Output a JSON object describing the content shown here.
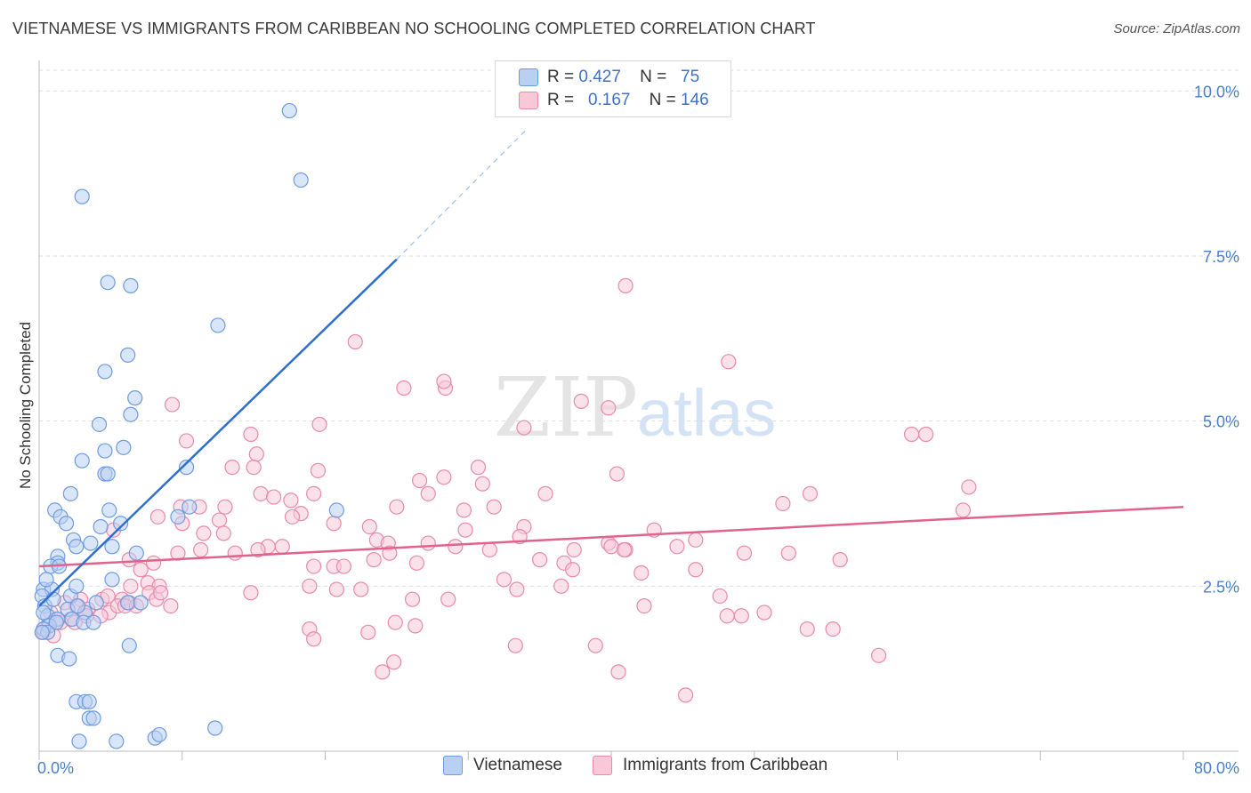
{
  "header": {
    "title": "VIETNAMESE VS IMMIGRANTS FROM CARIBBEAN NO SCHOOLING COMPLETED CORRELATION CHART",
    "source": "Source: ZipAtlas.com"
  },
  "legend": {
    "rows": [
      {
        "r_label": "R =",
        "r_value": "0.427",
        "n_label": "N =",
        "n_value": "75"
      },
      {
        "r_label": "R =",
        "r_value": "0.167",
        "n_label": "N =",
        "n_value": "146"
      }
    ]
  },
  "watermark": {
    "zip": "ZIP",
    "atlas": "atlas"
  },
  "colors": {
    "vietnamese_fill": "#b9d0f3",
    "vietnamese_stroke": "#6d9be0",
    "vietnamese_line": "#2d6fcf",
    "caribbean_fill": "#f8c8d8",
    "caribbean_stroke": "#e88aa8",
    "caribbean_line": "#e0628e",
    "tick_text": "#4a7fcb"
  },
  "chart_data": {
    "type": "scatter",
    "title": "VIETNAMESE VS IMMIGRANTS FROM CARIBBEAN NO SCHOOLING COMPLETED CORRELATION CHART",
    "xlabel": "",
    "ylabel": "No Schooling Completed",
    "xlim": [
      0,
      80
    ],
    "ylim": [
      0,
      10.3
    ],
    "x_tick_labels": [
      "0.0%",
      "80.0%"
    ],
    "y_ticks": [
      2.5,
      5.0,
      7.5,
      10.0
    ],
    "y_tick_labels": [
      "2.5%",
      "5.0%",
      "7.5%",
      "10.0%"
    ],
    "grid": true,
    "legend_position": "top-center",
    "series": [
      {
        "name": "Vietnamese",
        "r": 0.427,
        "n": 75,
        "trend": {
          "x0": 0.0,
          "y0": 2.2,
          "x1": 25.0,
          "y1": 7.45,
          "dash_to_x": 34.0,
          "dash_to_y": 9.4
        },
        "points": [
          [
            17.5,
            9.7
          ],
          [
            18.3,
            8.65
          ],
          [
            3.0,
            8.4
          ],
          [
            4.8,
            7.1
          ],
          [
            6.4,
            7.05
          ],
          [
            12.5,
            6.45
          ],
          [
            6.2,
            6.0
          ],
          [
            4.6,
            5.75
          ],
          [
            6.7,
            5.35
          ],
          [
            6.4,
            5.1
          ],
          [
            4.2,
            4.95
          ],
          [
            5.9,
            4.6
          ],
          [
            3.0,
            4.4
          ],
          [
            4.6,
            4.55
          ],
          [
            4.6,
            4.2
          ],
          [
            4.8,
            4.2
          ],
          [
            10.3,
            4.3
          ],
          [
            2.2,
            3.9
          ],
          [
            1.1,
            3.65
          ],
          [
            4.9,
            3.65
          ],
          [
            10.5,
            3.7
          ],
          [
            9.7,
            3.55
          ],
          [
            20.8,
            3.65
          ],
          [
            1.5,
            3.55
          ],
          [
            1.9,
            3.45
          ],
          [
            4.3,
            3.4
          ],
          [
            5.7,
            3.45
          ],
          [
            2.4,
            3.2
          ],
          [
            2.6,
            3.1
          ],
          [
            3.6,
            3.15
          ],
          [
            5.1,
            3.1
          ],
          [
            1.3,
            2.95
          ],
          [
            6.8,
            3.0
          ],
          [
            1.3,
            2.85
          ],
          [
            0.8,
            2.8
          ],
          [
            1.4,
            2.8
          ],
          [
            5.1,
            2.6
          ],
          [
            0.3,
            2.45
          ],
          [
            0.9,
            2.45
          ],
          [
            2.2,
            2.35
          ],
          [
            2.6,
            2.5
          ],
          [
            0.2,
            2.35
          ],
          [
            0.4,
            2.2
          ],
          [
            0.6,
            2.05
          ],
          [
            0.3,
            2.1
          ],
          [
            1.3,
            2.0
          ],
          [
            2.0,
            2.15
          ],
          [
            3.2,
            2.1
          ],
          [
            4.0,
            2.25
          ],
          [
            6.2,
            2.25
          ],
          [
            7.1,
            2.25
          ],
          [
            0.7,
            1.9
          ],
          [
            0.3,
            1.85
          ],
          [
            1.2,
            1.95
          ],
          [
            2.3,
            2.0
          ],
          [
            3.1,
            1.95
          ],
          [
            3.8,
            1.95
          ],
          [
            0.6,
            1.8
          ],
          [
            1.3,
            1.45
          ],
          [
            2.1,
            1.4
          ],
          [
            6.3,
            1.6
          ],
          [
            2.6,
            0.75
          ],
          [
            3.2,
            0.75
          ],
          [
            3.5,
            0.75
          ],
          [
            3.5,
            0.5
          ],
          [
            3.8,
            0.5
          ],
          [
            2.8,
            0.15
          ],
          [
            5.4,
            0.15
          ],
          [
            8.1,
            0.2
          ],
          [
            8.4,
            0.25
          ],
          [
            12.3,
            0.35
          ],
          [
            0.2,
            1.8
          ],
          [
            1.0,
            2.3
          ],
          [
            2.7,
            2.2
          ],
          [
            0.5,
            2.6
          ]
        ]
      },
      {
        "name": "Immigrants from Caribbean",
        "r": 0.167,
        "n": 146,
        "trend": {
          "x0": 0.0,
          "y0": 2.8,
          "x1": 80.0,
          "y1": 3.7
        },
        "points": [
          [
            41.0,
            7.05
          ],
          [
            22.1,
            6.2
          ],
          [
            48.2,
            5.9
          ],
          [
            28.4,
            5.5
          ],
          [
            28.3,
            5.6
          ],
          [
            25.5,
            5.5
          ],
          [
            37.9,
            5.3
          ],
          [
            39.8,
            5.2
          ],
          [
            9.3,
            5.25
          ],
          [
            19.6,
            4.95
          ],
          [
            33.9,
            4.9
          ],
          [
            62.0,
            4.8
          ],
          [
            10.3,
            4.7
          ],
          [
            15.2,
            4.5
          ],
          [
            13.5,
            4.3
          ],
          [
            15.0,
            4.3
          ],
          [
            19.5,
            4.25
          ],
          [
            30.7,
            4.3
          ],
          [
            28.3,
            4.15
          ],
          [
            26.6,
            4.1
          ],
          [
            31.0,
            4.05
          ],
          [
            40.4,
            4.2
          ],
          [
            65.0,
            4.0
          ],
          [
            9.9,
            3.7
          ],
          [
            11.2,
            3.7
          ],
          [
            13.0,
            3.7
          ],
          [
            15.5,
            3.9
          ],
          [
            16.4,
            3.85
          ],
          [
            17.6,
            3.8
          ],
          [
            19.2,
            3.9
          ],
          [
            25.0,
            3.7
          ],
          [
            27.2,
            3.9
          ],
          [
            35.4,
            3.9
          ],
          [
            52.0,
            3.75
          ],
          [
            53.9,
            3.9
          ],
          [
            64.6,
            3.65
          ],
          [
            31.8,
            3.7
          ],
          [
            29.7,
            3.65
          ],
          [
            18.3,
            3.6
          ],
          [
            12.6,
            3.5
          ],
          [
            10.0,
            3.45
          ],
          [
            17.7,
            3.55
          ],
          [
            20.6,
            3.45
          ],
          [
            23.1,
            3.4
          ],
          [
            29.8,
            3.35
          ],
          [
            33.9,
            3.4
          ],
          [
            43.0,
            3.35
          ],
          [
            5.2,
            3.35
          ],
          [
            8.3,
            3.55
          ],
          [
            11.5,
            3.3
          ],
          [
            12.9,
            3.3
          ],
          [
            16.0,
            3.1
          ],
          [
            15.3,
            3.05
          ],
          [
            17.0,
            3.1
          ],
          [
            23.6,
            3.2
          ],
          [
            24.4,
            3.15
          ],
          [
            24.5,
            3.0
          ],
          [
            27.2,
            3.15
          ],
          [
            29.1,
            3.1
          ],
          [
            31.5,
            3.05
          ],
          [
            33.6,
            3.25
          ],
          [
            39.8,
            3.15
          ],
          [
            41.0,
            3.05
          ],
          [
            44.6,
            3.1
          ],
          [
            45.9,
            3.2
          ],
          [
            37.4,
            3.05
          ],
          [
            40.0,
            3.1
          ],
          [
            49.3,
            3.0
          ],
          [
            52.4,
            3.0
          ],
          [
            6.3,
            2.9
          ],
          [
            8.0,
            2.85
          ],
          [
            9.7,
            3.0
          ],
          [
            11.3,
            3.05
          ],
          [
            13.7,
            3.0
          ],
          [
            19.2,
            2.8
          ],
          [
            20.6,
            2.8
          ],
          [
            21.3,
            2.8
          ],
          [
            23.4,
            2.9
          ],
          [
            26.4,
            2.85
          ],
          [
            35.0,
            2.9
          ],
          [
            36.7,
            2.85
          ],
          [
            37.3,
            2.75
          ],
          [
            45.9,
            2.75
          ],
          [
            42.1,
            2.7
          ],
          [
            56.0,
            2.9
          ],
          [
            7.1,
            2.75
          ],
          [
            6.4,
            2.5
          ],
          [
            14.8,
            2.4
          ],
          [
            18.9,
            2.5
          ],
          [
            20.8,
            2.45
          ],
          [
            22.5,
            2.45
          ],
          [
            26.1,
            2.3
          ],
          [
            28.6,
            2.3
          ],
          [
            32.5,
            2.6
          ],
          [
            33.4,
            2.45
          ],
          [
            36.5,
            2.5
          ],
          [
            47.6,
            2.35
          ],
          [
            7.6,
            2.55
          ],
          [
            8.4,
            2.5
          ],
          [
            2.9,
            2.3
          ],
          [
            4.4,
            2.3
          ],
          [
            4.8,
            2.35
          ],
          [
            5.8,
            2.3
          ],
          [
            7.7,
            2.4
          ],
          [
            8.2,
            2.3
          ],
          [
            8.5,
            2.4
          ],
          [
            9.2,
            2.2
          ],
          [
            1.8,
            2.25
          ],
          [
            2.6,
            2.2
          ],
          [
            3.4,
            2.15
          ],
          [
            4.9,
            2.1
          ],
          [
            6.3,
            2.25
          ],
          [
            0.8,
            2.1
          ],
          [
            1.2,
            2.0
          ],
          [
            2.2,
            2.0
          ],
          [
            3.3,
            2.05
          ],
          [
            4.3,
            2.05
          ],
          [
            5.5,
            2.2
          ],
          [
            6.0,
            2.2
          ],
          [
            6.8,
            2.2
          ],
          [
            0.6,
            1.9
          ],
          [
            1.5,
            1.95
          ],
          [
            2.5,
            1.95
          ],
          [
            0.3,
            1.8
          ],
          [
            1.0,
            1.75
          ],
          [
            18.9,
            1.85
          ],
          [
            19.2,
            1.7
          ],
          [
            23.0,
            1.8
          ],
          [
            24.9,
            1.95
          ],
          [
            26.3,
            1.9
          ],
          [
            48.1,
            2.05
          ],
          [
            49.1,
            2.05
          ],
          [
            50.7,
            2.1
          ],
          [
            55.5,
            1.85
          ],
          [
            53.7,
            1.85
          ],
          [
            42.3,
            2.2
          ],
          [
            33.3,
            1.6
          ],
          [
            38.9,
            1.6
          ],
          [
            24.8,
            1.35
          ],
          [
            24.0,
            1.2
          ],
          [
            40.5,
            1.2
          ],
          [
            45.2,
            0.85
          ],
          [
            58.7,
            1.45
          ],
          [
            61.0,
            4.8
          ],
          [
            14.8,
            4.8
          ],
          [
            40.9,
            3.05
          ]
        ]
      }
    ]
  }
}
